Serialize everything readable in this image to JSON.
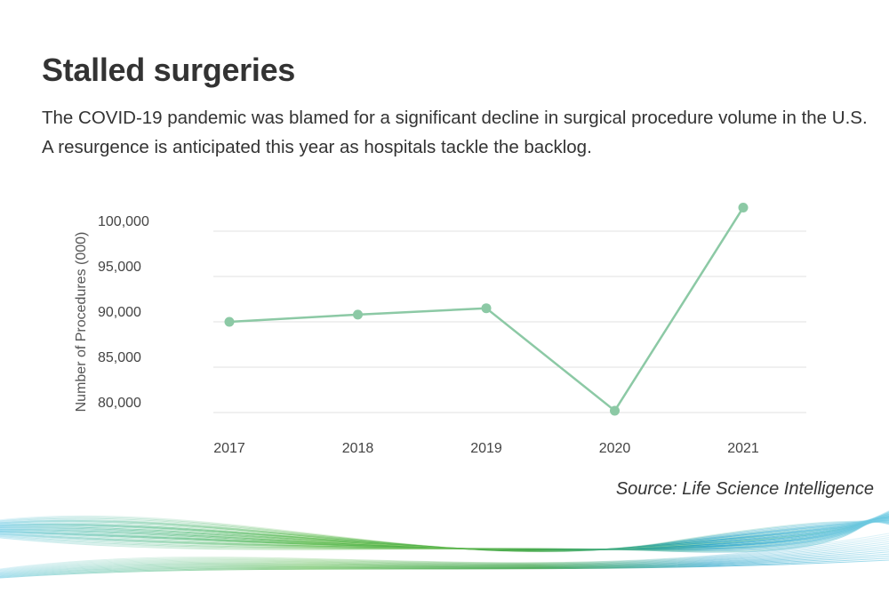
{
  "header": {
    "title": "Stalled surgeries",
    "subtitle": "The COVID-19 pandemic was blamed for a significant decline in surgical procedure volume in the U.S. A resurgence is anticipated this year as hospitals tackle the backlog."
  },
  "chart_data": {
    "type": "line",
    "x": [
      "2017",
      "2018",
      "2019",
      "2020",
      "2021"
    ],
    "series": [
      {
        "values": [
          90000,
          90800,
          91500,
          80200,
          102600
        ]
      }
    ],
    "xlabel": "",
    "ylabel": "Number of Procedures (000)",
    "yticks": [
      80000,
      85000,
      90000,
      95000,
      100000
    ],
    "ytick_labels": [
      "80,000",
      "85,000",
      "90,000",
      "95,000",
      "100,000"
    ],
    "ylim": [
      80000,
      100000
    ],
    "grid": true,
    "line_color": "#8cc9a5"
  },
  "footer": {
    "source": "Source: Life Science Intelligence"
  }
}
